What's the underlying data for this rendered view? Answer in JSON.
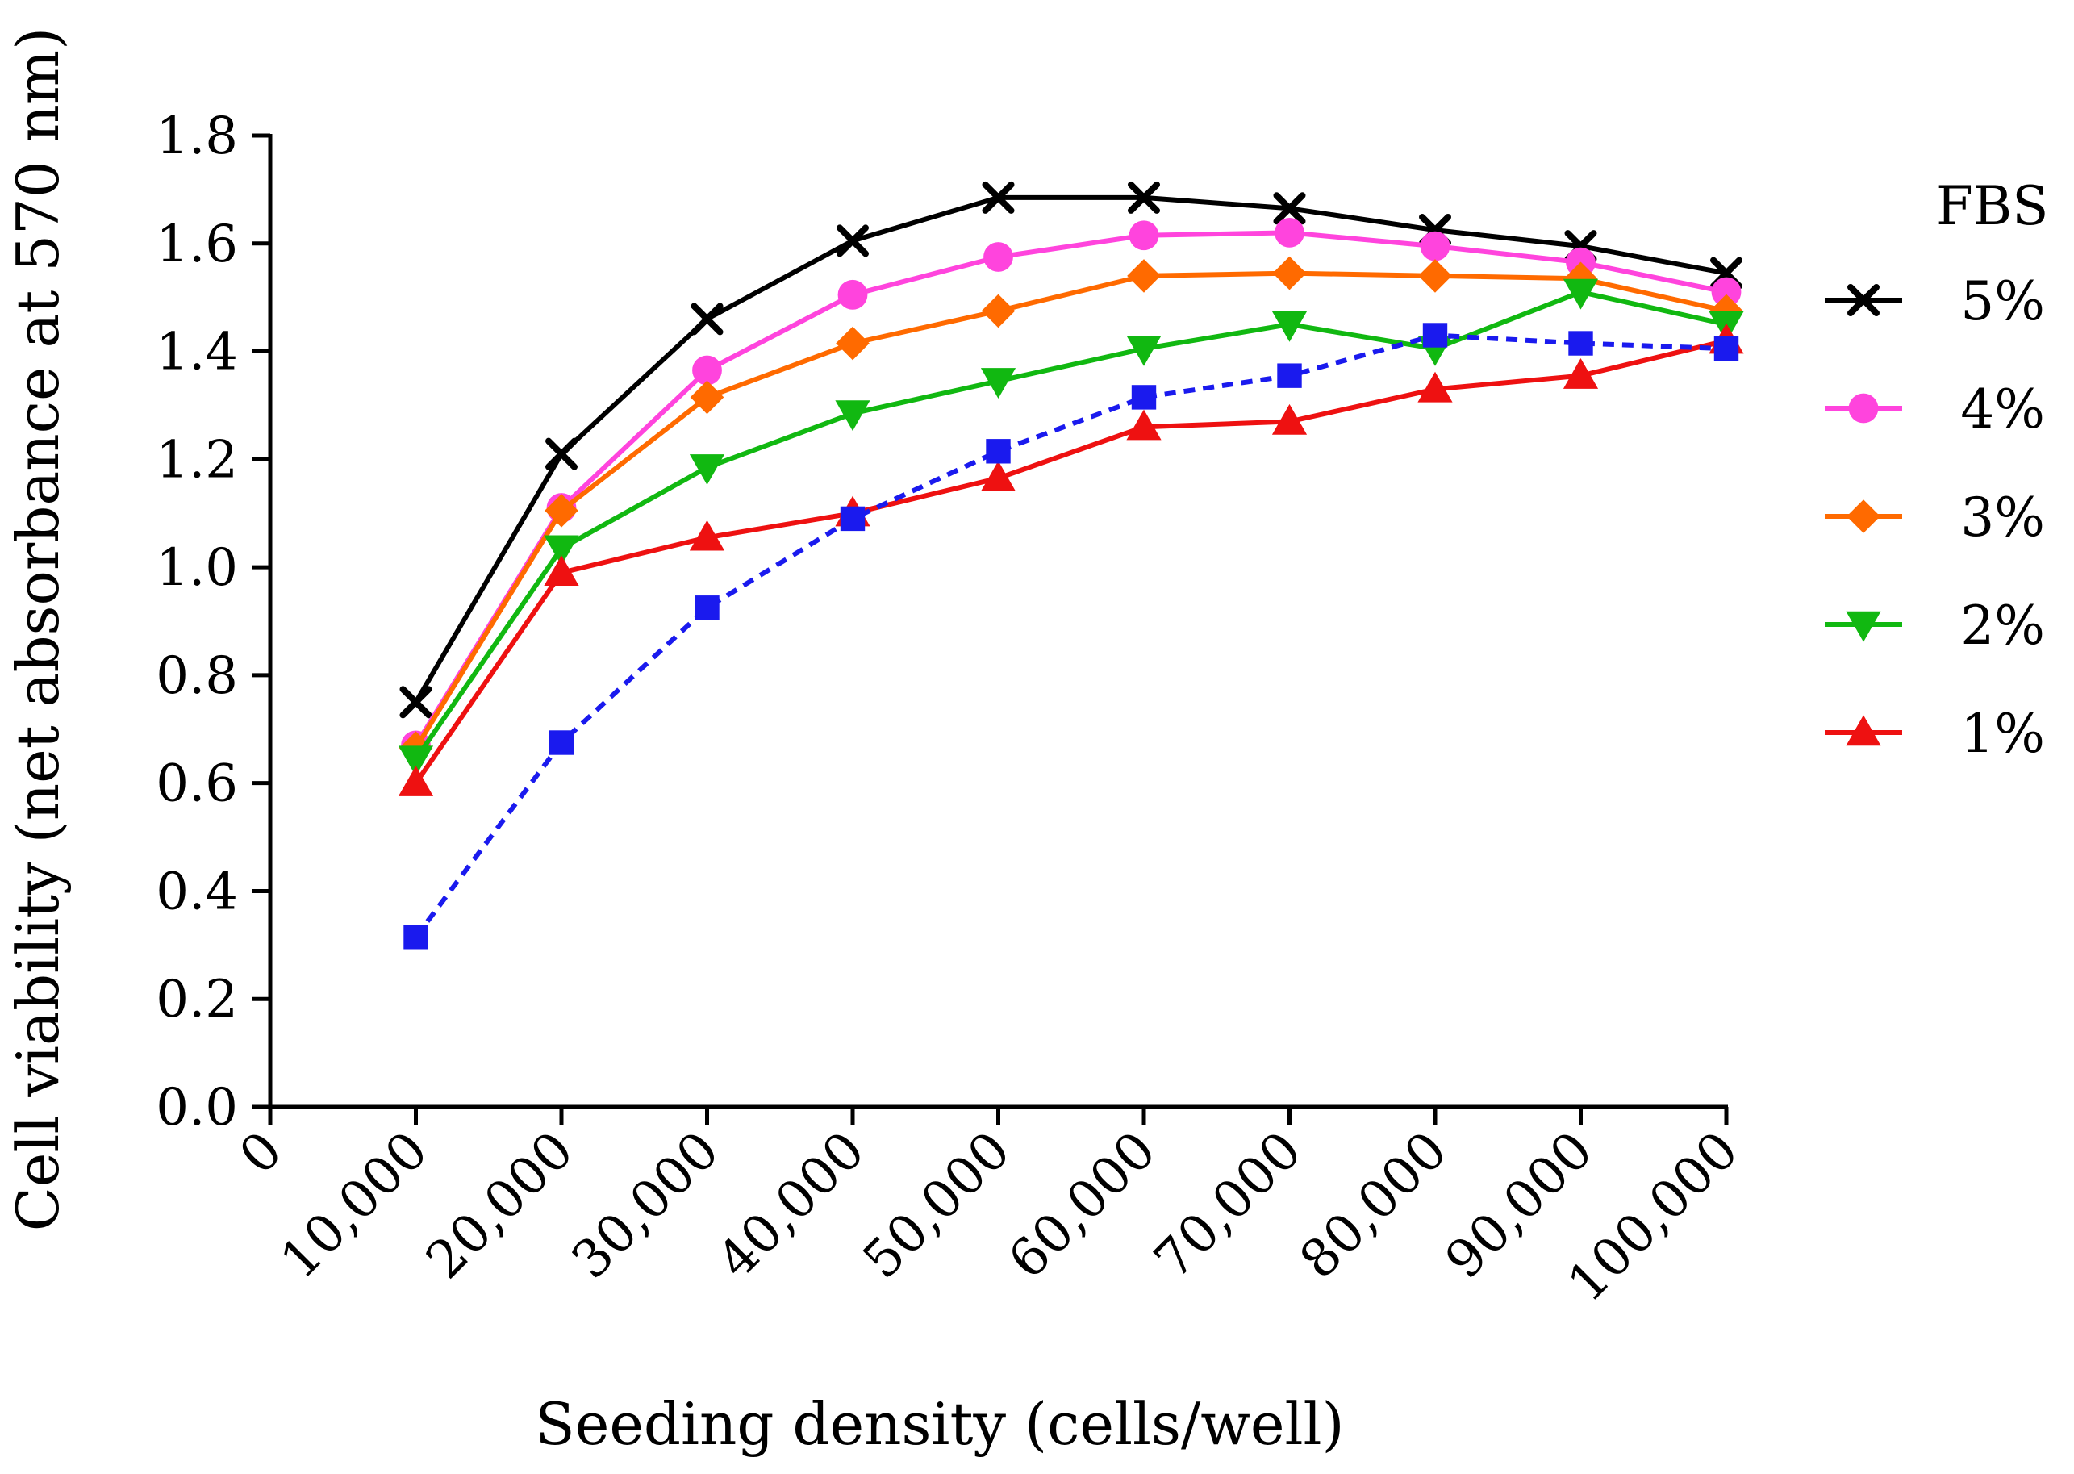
{
  "chart_data": {
    "type": "line",
    "title": "",
    "xlabel": "Seeding density (cells/well)",
    "ylabel": "Cell viability (net absorbance at 570 nm)",
    "xlim": [
      0,
      100000
    ],
    "ylim": [
      0,
      1.8
    ],
    "x_ticks": [
      "0",
      "10,000",
      "20,000",
      "30,000",
      "40,000",
      "50,000",
      "60,000",
      "70,000",
      "80,000",
      "90,000",
      "100,000"
    ],
    "y_ticks": [
      "0.0",
      "0.2",
      "0.4",
      "0.6",
      "0.8",
      "1.0",
      "1.2",
      "1.4",
      "1.6",
      "1.8"
    ],
    "legend_title": "FBS",
    "legend_position": "right",
    "x": [
      10000,
      20000,
      30000,
      40000,
      50000,
      60000,
      70000,
      80000,
      90000,
      100000
    ],
    "series": [
      {
        "name": "5%",
        "color": "#000000",
        "marker": "cross",
        "in_legend": true,
        "dashed": false,
        "values": [
          0.75,
          1.21,
          1.46,
          1.605,
          1.685,
          1.685,
          1.665,
          1.625,
          1.595,
          1.545
        ]
      },
      {
        "name": "4%",
        "color": "#ff44dd",
        "marker": "circle",
        "in_legend": true,
        "dashed": false,
        "values": [
          0.67,
          1.11,
          1.365,
          1.505,
          1.575,
          1.615,
          1.62,
          1.595,
          1.565,
          1.51
        ]
      },
      {
        "name": "3%",
        "color": "#ff6a00",
        "marker": "diamond",
        "in_legend": true,
        "dashed": false,
        "values": [
          0.665,
          1.105,
          1.315,
          1.415,
          1.475,
          1.54,
          1.545,
          1.54,
          1.535,
          1.475
        ]
      },
      {
        "name": "2%",
        "color": "#11b811",
        "marker": "triangle-down",
        "in_legend": true,
        "dashed": false,
        "values": [
          0.645,
          1.035,
          1.185,
          1.285,
          1.345,
          1.405,
          1.45,
          1.405,
          1.51,
          1.45
        ]
      },
      {
        "name": "1%",
        "color": "#ee1111",
        "marker": "triangle-up",
        "in_legend": true,
        "dashed": false,
        "values": [
          0.6,
          0.99,
          1.055,
          1.1,
          1.165,
          1.26,
          1.27,
          1.33,
          1.355,
          1.42
        ]
      },
      {
        "name": "",
        "color": "#1a1aee",
        "marker": "square",
        "in_legend": false,
        "dashed": true,
        "values": [
          0.315,
          0.675,
          0.925,
          1.09,
          1.215,
          1.315,
          1.355,
          1.43,
          1.415,
          1.405
        ]
      }
    ]
  }
}
